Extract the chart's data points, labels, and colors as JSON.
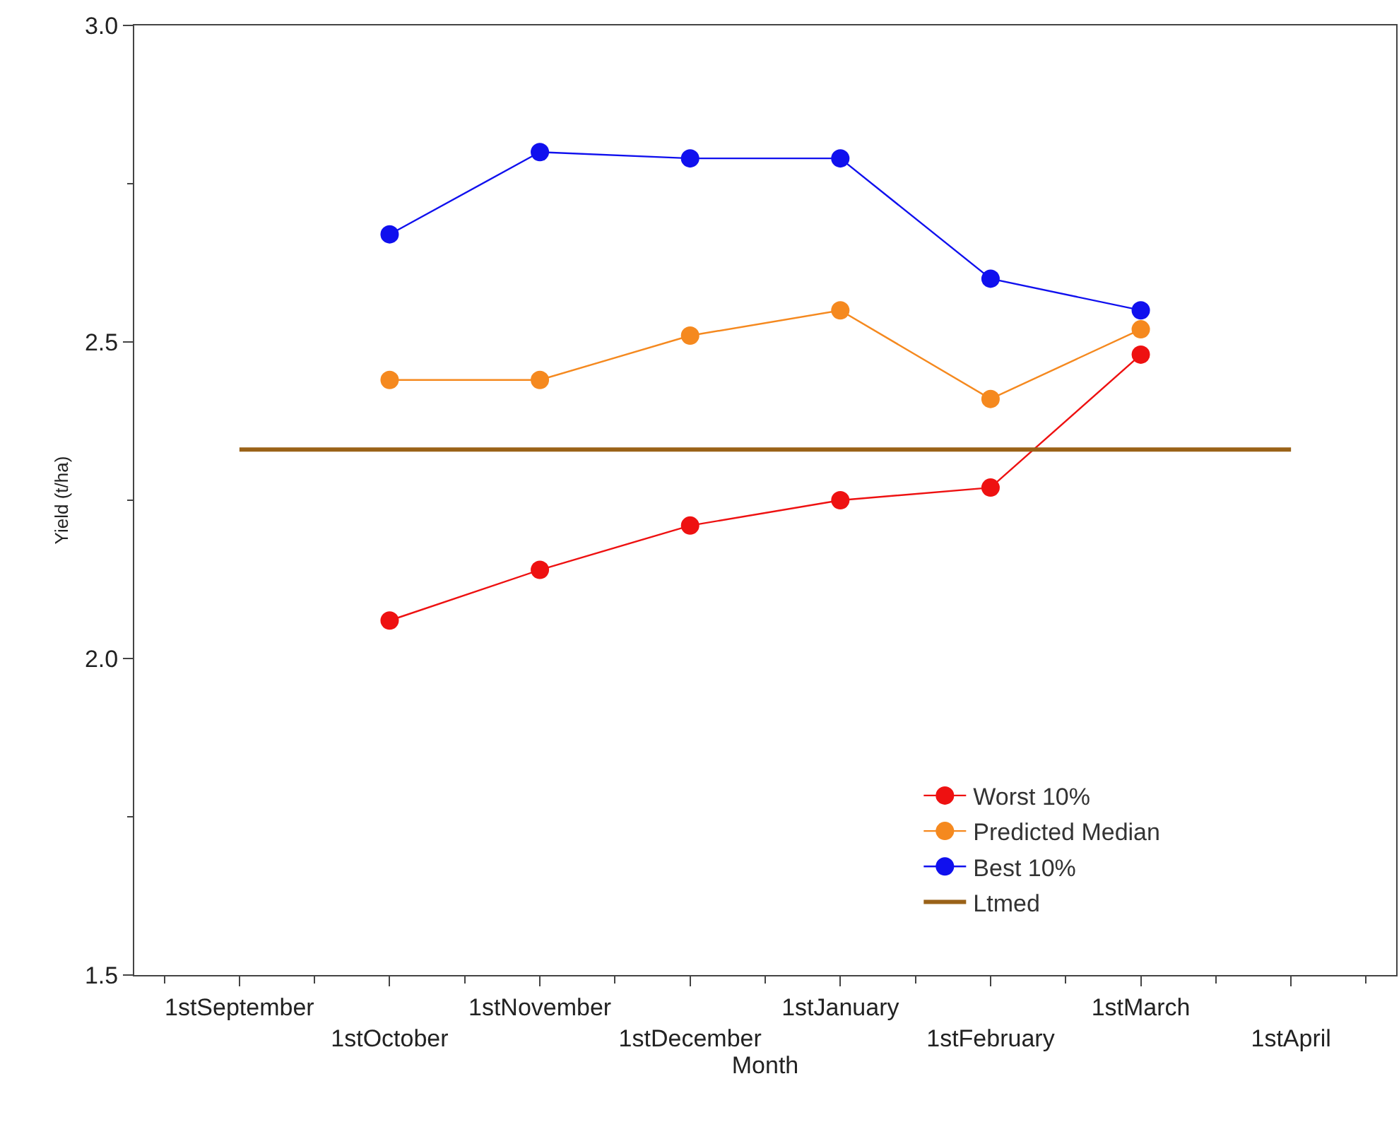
{
  "chart_data": {
    "type": "line",
    "xlabel": "Month",
    "ylabel": "Yield (t/ha)",
    "categories": [
      "1stSeptember",
      "1stOctober",
      "1stNovember",
      "1stDecember",
      "1stJanuary",
      "1stFebruary",
      "1stMarch",
      "1stApril"
    ],
    "series": [
      {
        "name": "Worst 10%",
        "color": "#ee1111",
        "marker": "circle",
        "values": [
          null,
          2.06,
          2.14,
          2.21,
          2.25,
          2.27,
          2.48,
          null
        ]
      },
      {
        "name": "Predicted Median",
        "color": "#f5891f",
        "marker": "circle",
        "values": [
          null,
          2.44,
          2.44,
          2.51,
          2.55,
          2.41,
          2.52,
          null
        ]
      },
      {
        "name": "Best 10%",
        "color": "#1010ee",
        "marker": "circle",
        "values": [
          null,
          2.67,
          2.8,
          2.79,
          2.79,
          2.6,
          2.55,
          null
        ]
      },
      {
        "name": "Ltmed",
        "color": "#9a6218",
        "marker": "none",
        "values": [
          2.33,
          2.33,
          2.33,
          2.33,
          2.33,
          2.33,
          2.33,
          2.33
        ]
      }
    ],
    "ylim": [
      1.5,
      3.0
    ],
    "yticks": [
      {
        "value": 1.5,
        "label": "1.5"
      },
      {
        "value": 2.0,
        "label": "2.0"
      },
      {
        "value": 2.5,
        "label": "2.5"
      },
      {
        "value": 3.0,
        "label": "3.0"
      }
    ],
    "grid": false,
    "legend": "bottom right"
  }
}
